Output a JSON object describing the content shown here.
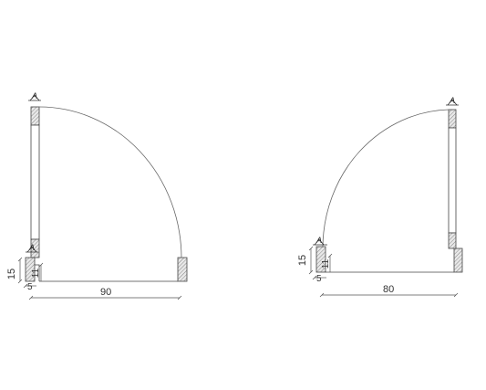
{
  "colors": {
    "background": "#ffffff",
    "line": "#444444",
    "arc": "#666666",
    "hatch": "#888888",
    "jamb_fill": "#e8e8e8"
  },
  "door_left": {
    "tag_top": "A",
    "tag_mid": "A",
    "dim_width": "90",
    "dim_height": "15",
    "dim_height_small": "11",
    "dim_offset": "5"
  },
  "door_right": {
    "tag": "A",
    "dim_width": "80",
    "dim_height": "15",
    "dim_height_small": "11",
    "dim_offset": "5"
  }
}
